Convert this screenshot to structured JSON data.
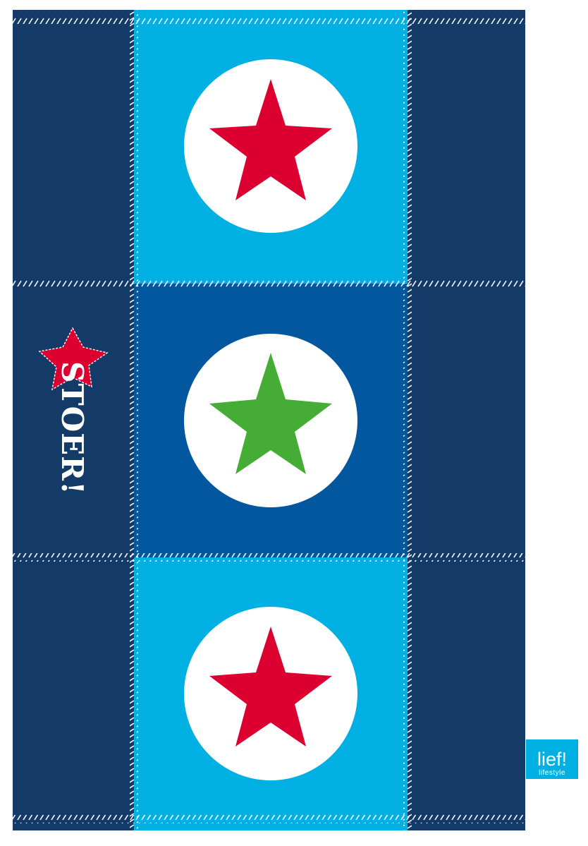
{
  "slogan": "STOER!",
  "brand": {
    "name": "lief!",
    "tagline": "lifestyle"
  },
  "colors": {
    "navy": "#143a68",
    "mid_blue": "#02579e",
    "light_blue": "#00b0e2",
    "red": "#dc0031",
    "green": "#45ad35",
    "white": "#ffffff"
  },
  "panels": [
    {
      "background": "light_blue",
      "star_color": "red"
    },
    {
      "background": "mid_blue",
      "star_color": "green"
    },
    {
      "background": "light_blue",
      "star_color": "red"
    }
  ]
}
